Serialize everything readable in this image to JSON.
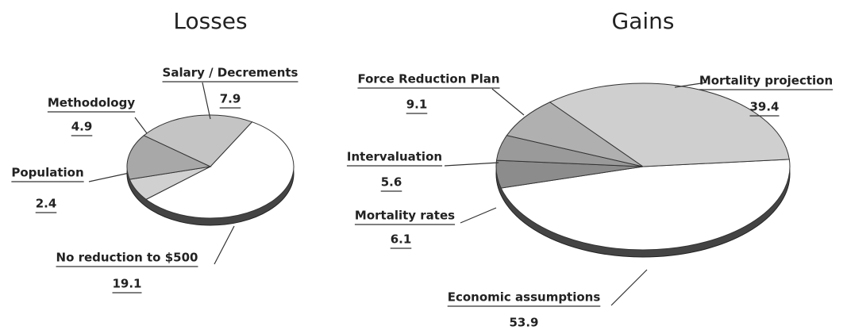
{
  "chart_data": [
    {
      "type": "pie",
      "title": "Losses",
      "categories": [
        "No reduction to $500",
        "Population",
        "Methodology",
        "Salary / Decrements"
      ],
      "values": [
        19.1,
        2.4,
        4.9,
        7.9
      ],
      "colors": [
        "#ffffff",
        "#d0d0d0",
        "#a8a8a8",
        "#c4c4c4"
      ]
    },
    {
      "type": "pie",
      "title": "Gains",
      "categories": [
        "Economic assumptions",
        "Mortality rates",
        "Intervaluation",
        "Force Reduction Plan",
        "Mortality projection"
      ],
      "values": [
        53.9,
        6.1,
        5.6,
        9.1,
        39.4
      ],
      "colors": [
        "#ffffff",
        "#8c8c8c",
        "#9a9a9a",
        "#b0b0b0",
        "#cfcfcf"
      ]
    }
  ]
}
